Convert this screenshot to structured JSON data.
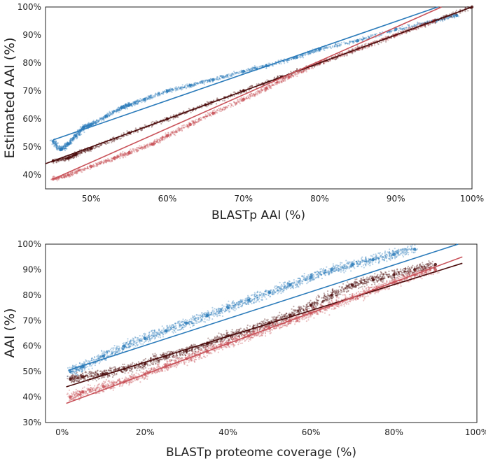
{
  "colors": {
    "blue": "#2b7bba",
    "dark": "#4a0a0a",
    "red": "#c9535a"
  },
  "chart_data": [
    {
      "type": "scatter",
      "title": "",
      "xlabel": "BLASTp AAI (%)",
      "ylabel": "Estimated AAI (%)",
      "xlim": [
        44,
        100
      ],
      "ylim": [
        35,
        100
      ],
      "x_ticks": [
        50,
        60,
        70,
        80,
        90,
        100
      ],
      "y_ticks": [
        40,
        50,
        60,
        70,
        80,
        90,
        100
      ],
      "x_tick_labels": [
        "50%",
        "60%",
        "70%",
        "80%",
        "90%",
        "100%"
      ],
      "y_tick_labels": [
        "40%",
        "50%",
        "60%",
        "70%",
        "80%",
        "90%",
        "100%"
      ],
      "grid": false,
      "series": [
        {
          "color": "blue",
          "points": [
            [
              45,
              52
            ],
            [
              46,
              49
            ],
            [
              47,
              51
            ],
            [
              48,
              54
            ],
            [
              49,
              57
            ],
            [
              50,
              58
            ],
            [
              52,
              61
            ],
            [
              54,
              64
            ],
            [
              55,
              65
            ],
            [
              57,
              67
            ],
            [
              60,
              70
            ],
            [
              63,
              72
            ],
            [
              66,
              74
            ],
            [
              70,
              77
            ],
            [
              73,
              79
            ],
            [
              77,
              82
            ],
            [
              80,
              85
            ],
            [
              85,
              88
            ],
            [
              90,
              92
            ],
            [
              95,
              95
            ],
            [
              98,
              97
            ]
          ],
          "fit_line": [
            [
              45,
              52.5
            ],
            [
              95.5,
              100
            ]
          ]
        },
        {
          "color": "dark",
          "points": [
            [
              45,
              45
            ],
            [
              47,
              46
            ],
            [
              48,
              47.5
            ],
            [
              50,
              49.5
            ],
            [
              55,
              55
            ],
            [
              60,
              60
            ],
            [
              65,
              65
            ],
            [
              70,
              70
            ],
            [
              75,
              75
            ],
            [
              80,
              80
            ],
            [
              85,
              85
            ],
            [
              90,
              90
            ],
            [
              95,
              95
            ],
            [
              100,
              100
            ]
          ],
          "fit_line": [
            [
              44,
              44
            ],
            [
              100,
              100
            ]
          ]
        },
        {
          "color": "red",
          "points": [
            [
              45,
              38.5
            ],
            [
              47,
              40
            ],
            [
              50,
              43
            ],
            [
              53,
              46
            ],
            [
              55,
              48
            ],
            [
              58,
              51
            ],
            [
              60,
              54
            ],
            [
              63,
              58
            ],
            [
              66,
              62
            ],
            [
              70,
              67
            ],
            [
              73,
              71
            ],
            [
              76,
              75
            ],
            [
              80,
              80
            ],
            [
              85,
              85
            ],
            [
              90,
              90
            ],
            [
              95,
              95
            ]
          ],
          "fit_line": [
            [
              45,
              38.5
            ],
            [
              96,
              100
            ]
          ]
        }
      ]
    },
    {
      "type": "scatter",
      "title": "",
      "xlabel": "BLASTp proteome coverage (%)",
      "ylabel": "AAI (%)",
      "xlim": [
        -4,
        100
      ],
      "ylim": [
        30,
        100
      ],
      "x_ticks": [
        0,
        20,
        40,
        60,
        80,
        100
      ],
      "y_ticks": [
        30,
        40,
        50,
        60,
        70,
        80,
        90,
        100
      ],
      "x_tick_labels": [
        "0%",
        "20%",
        "40%",
        "60%",
        "80%",
        "100%"
      ],
      "y_tick_labels": [
        "30%",
        "40%",
        "50%",
        "60%",
        "70%",
        "80%",
        "90%",
        "100%"
      ],
      "grid": false,
      "series": [
        {
          "color": "blue",
          "points": [
            [
              2,
              50
            ],
            [
              5,
              52
            ],
            [
              10,
              56
            ],
            [
              15,
              60
            ],
            [
              20,
              63
            ],
            [
              25,
              66
            ],
            [
              30,
              69
            ],
            [
              35,
              72
            ],
            [
              40,
              75
            ],
            [
              45,
              78
            ],
            [
              50,
              81
            ],
            [
              55,
              84
            ],
            [
              60,
              87
            ],
            [
              65,
              90
            ],
            [
              70,
              92
            ],
            [
              75,
              94
            ],
            [
              80,
              96
            ],
            [
              85,
              98
            ]
          ],
          "fit_line": [
            [
              1.5,
              50.5
            ],
            [
              95.5,
              100
            ]
          ]
        },
        {
          "color": "dark",
          "points": [
            [
              2,
              47
            ],
            [
              5,
              48
            ],
            [
              10,
              49
            ],
            [
              15,
              51
            ],
            [
              20,
              53
            ],
            [
              25,
              56
            ],
            [
              30,
              58
            ],
            [
              35,
              61
            ],
            [
              40,
              64
            ],
            [
              45,
              66
            ],
            [
              50,
              69
            ],
            [
              55,
              72
            ],
            [
              60,
              76
            ],
            [
              65,
              80
            ],
            [
              70,
              84
            ],
            [
              75,
              86
            ],
            [
              80,
              88
            ],
            [
              85,
              90
            ],
            [
              90,
              92
            ]
          ],
          "fit_line": [
            [
              1,
              44
            ],
            [
              96.5,
              92.5
            ]
          ]
        },
        {
          "color": "red",
          "points": [
            [
              2,
              40
            ],
            [
              5,
              42
            ],
            [
              10,
              44
            ],
            [
              15,
              46
            ],
            [
              20,
              49
            ],
            [
              25,
              52
            ],
            [
              30,
              55
            ],
            [
              35,
              58
            ],
            [
              40,
              61
            ],
            [
              45,
              64
            ],
            [
              50,
              67
            ],
            [
              55,
              70
            ],
            [
              60,
              73
            ],
            [
              65,
              76
            ],
            [
              70,
              79
            ],
            [
              75,
              82
            ],
            [
              80,
              85
            ],
            [
              85,
              88
            ],
            [
              90,
              90
            ]
          ],
          "fit_line": [
            [
              1,
              37.5
            ],
            [
              96.5,
              95
            ]
          ]
        }
      ]
    }
  ]
}
